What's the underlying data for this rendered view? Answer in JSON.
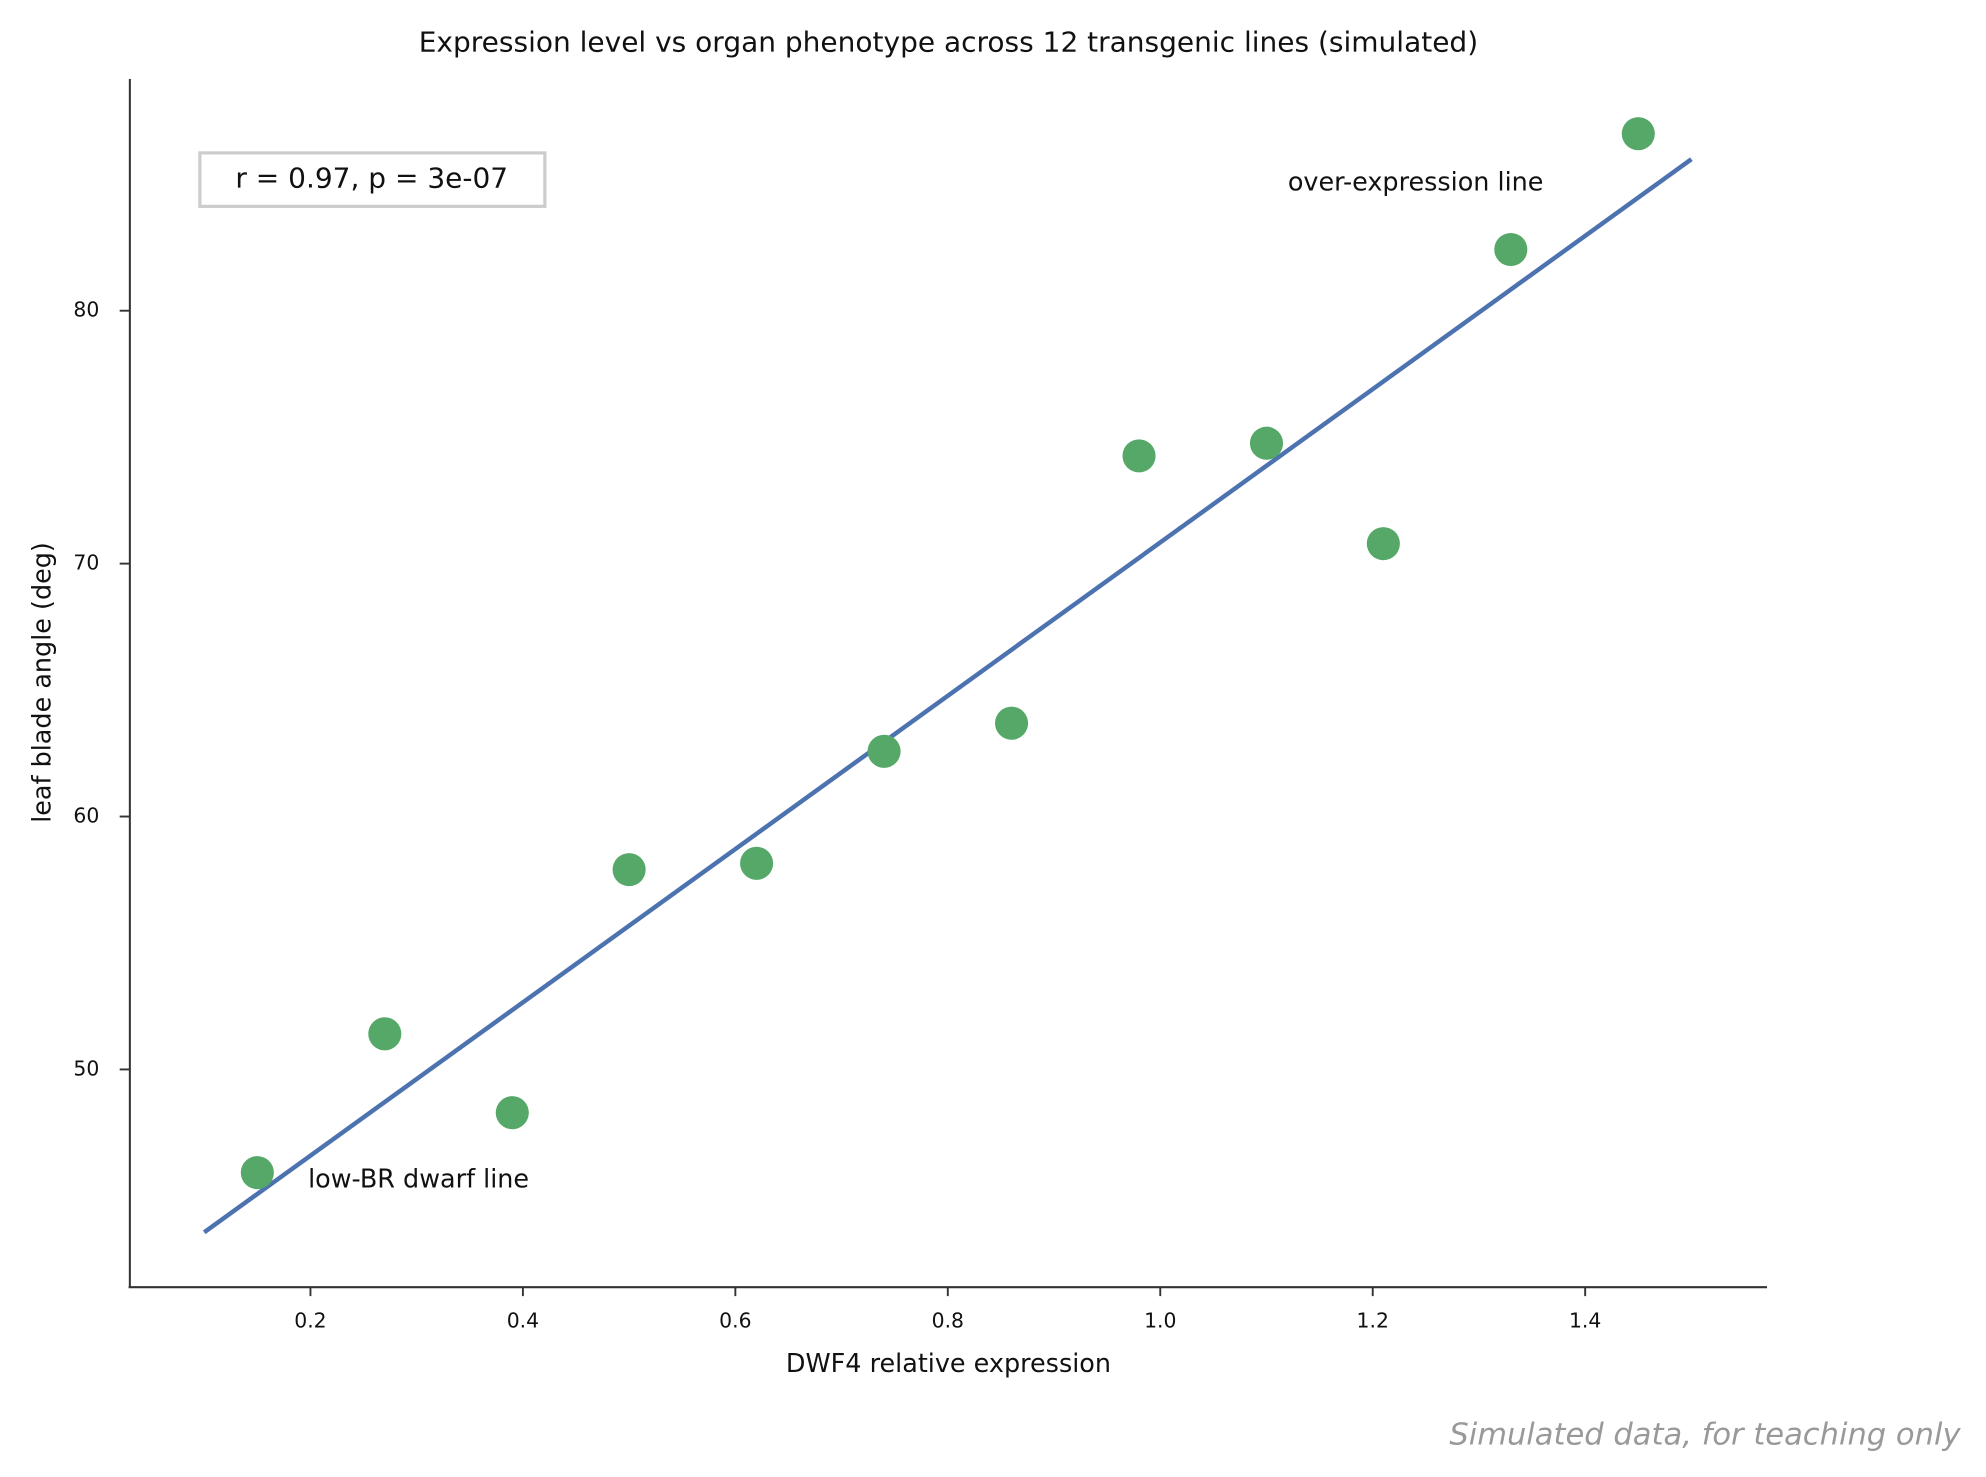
{
  "chart_data": {
    "type": "scatter",
    "title": "Expression level vs organ phenotype across 12 transgenic lines (simulated)",
    "x_label": "DWF4 relative expression",
    "y_label": "leaf blade angle (deg)",
    "xlim": [
      0.03,
      1.57
    ],
    "ylim": [
      41.44,
      89.16
    ],
    "xticks": [
      0.2,
      0.4,
      0.6,
      0.8,
      {
        "value": 1,
        "label": "1.0"
      },
      1.2,
      1.4
    ],
    "yticks": [
      50,
      60,
      70,
      80
    ],
    "series": [
      {
        "color": "#55a868",
        "x": [
          0.15,
          0.27,
          0.39,
          0.5,
          0.62,
          0.74,
          0.86,
          0.98,
          1.1,
          1.21,
          1.33,
          1.45
        ],
        "values": [
          45.92,
          51.41,
          48.29,
          57.9,
          58.15,
          62.58,
          63.69,
          74.26,
          74.76,
          70.79,
          82.42,
          87.0
        ]
      }
    ],
    "fit_line": {
      "color": "#4c72b0",
      "x": [
        0.1,
        1.5
      ],
      "values": [
        43.56,
        85.99
      ]
    },
    "stats_box": "r = 0.97,  p = 3e-07",
    "annotations": [
      "over-expression line",
      "low-BR dwarf line"
    ],
    "footnote": "Simulated data, for teaching only"
  }
}
